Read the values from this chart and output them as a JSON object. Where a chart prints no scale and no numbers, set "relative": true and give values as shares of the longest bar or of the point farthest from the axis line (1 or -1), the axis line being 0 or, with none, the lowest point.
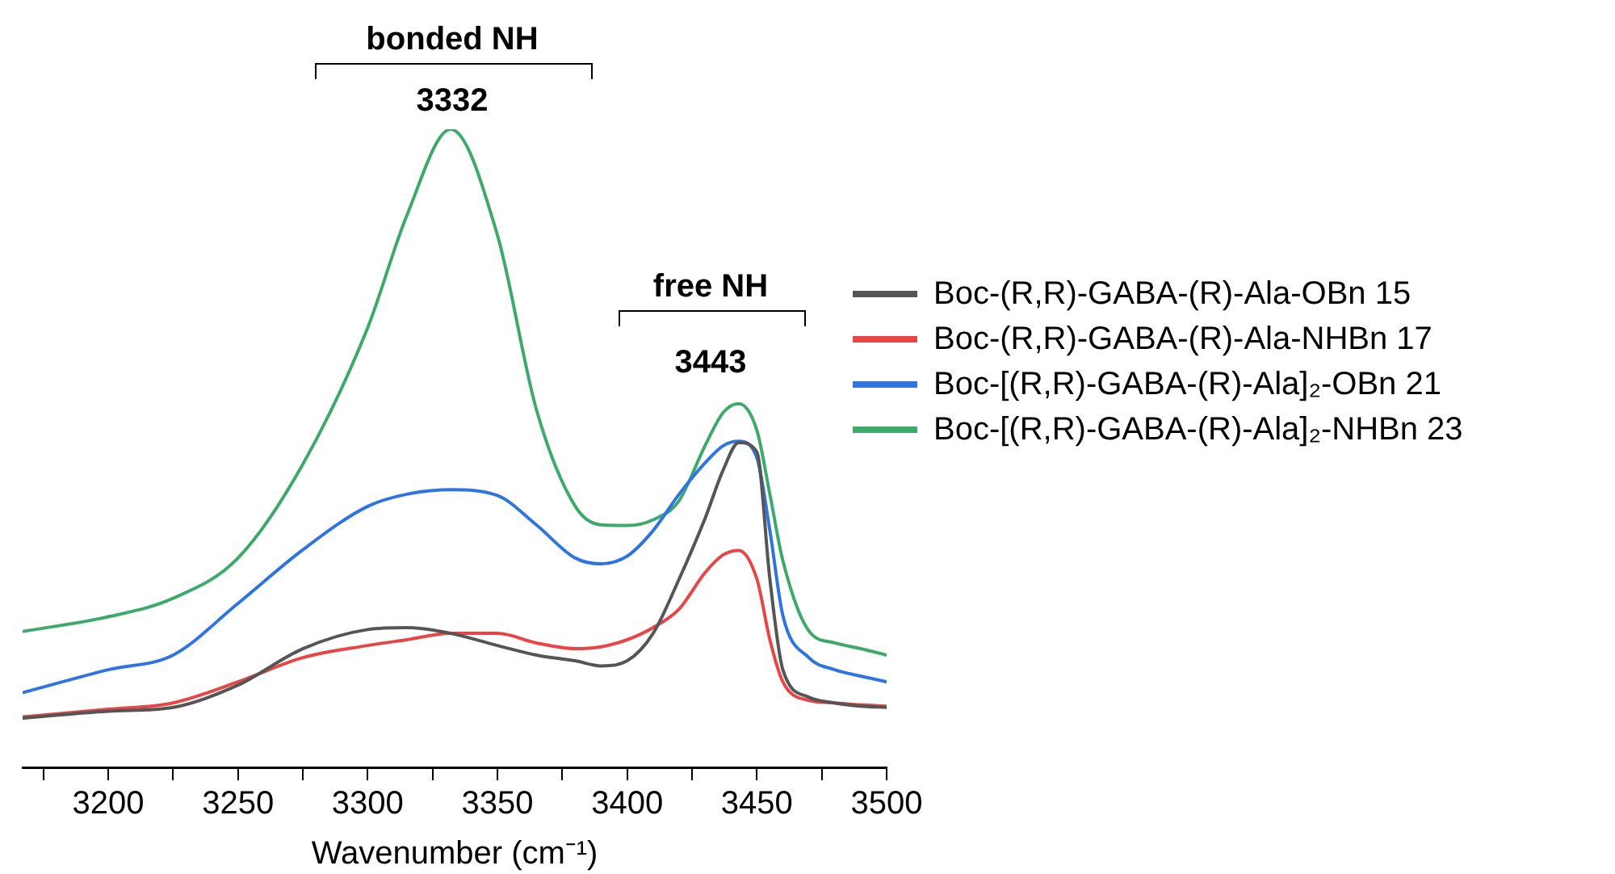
{
  "chart_data": {
    "type": "line",
    "relative": true,
    "xlabel": "Wavenumber (cm⁻¹)",
    "x": [
      3167,
      3200,
      3225,
      3250,
      3275,
      3300,
      3315,
      3332,
      3350,
      3365,
      3380,
      3390,
      3400,
      3410,
      3420,
      3430,
      3437,
      3443,
      3450,
      3455,
      3460,
      3470,
      3480,
      3490,
      3500
    ],
    "xlim": [
      3167,
      3500
    ],
    "xticks": [
      {
        "value": 3175,
        "label": null
      },
      3200,
      {
        "value": 3225,
        "label": null
      },
      3250,
      {
        "value": 3275,
        "label": null
      },
      3300,
      {
        "value": 3325,
        "label": null
      },
      3350,
      {
        "value": 3375,
        "label": null
      },
      3400,
      {
        "value": 3425,
        "label": null
      },
      3450,
      {
        "value": 3475,
        "label": null
      },
      3500
    ],
    "grid": false,
    "marker": "none",
    "line_style": "solid",
    "legend": "right",
    "series": [
      {
        "name": "Boc-(R,R)-GABA-(R)-Ala-OBn 15",
        "color": "#555555",
        "values": [
          0.077,
          0.088,
          0.094,
          0.129,
          0.186,
          0.216,
          0.219,
          0.21,
          0.191,
          0.176,
          0.167,
          0.159,
          0.167,
          0.21,
          0.295,
          0.39,
          0.466,
          0.509,
          0.494,
          0.295,
          0.153,
          0.11,
          0.101,
          0.096,
          0.094
        ]
      },
      {
        "name": "Boc-(R,R)-GABA-(R)-Ala-NHBn 17",
        "color": "#e84646",
        "values": [
          0.079,
          0.091,
          0.101,
          0.134,
          0.172,
          0.191,
          0.2,
          0.21,
          0.21,
          0.195,
          0.186,
          0.189,
          0.2,
          0.219,
          0.248,
          0.305,
          0.333,
          0.34,
          0.295,
          0.2,
          0.134,
          0.105,
          0.101,
          0.098,
          0.096
        ]
      },
      {
        "name": "Boc-[(R,R)-GABA-(R)-Ala]₂-OBn 21",
        "color": "#2f74e0",
        "values": [
          0.117,
          0.153,
          0.176,
          0.257,
          0.341,
          0.409,
          0.428,
          0.435,
          0.426,
          0.38,
          0.328,
          0.319,
          0.331,
          0.371,
          0.428,
          0.477,
          0.504,
          0.511,
          0.485,
          0.371,
          0.238,
          0.172,
          0.153,
          0.143,
          0.134
        ]
      },
      {
        "name": "Boc-[(R,R)-GABA-(R)-Ala]₂-NHBn 23",
        "color": "#3daa6c",
        "values": [
          0.213,
          0.236,
          0.265,
          0.328,
          0.475,
          0.689,
          0.864,
          1,
          0.834,
          0.561,
          0.409,
          0.38,
          0.379,
          0.388,
          0.418,
          0.504,
          0.556,
          0.57,
          0.528,
          0.428,
          0.324,
          0.214,
          0.195,
          0.186,
          0.176
        ]
      }
    ],
    "annotations": [
      "bonded NH",
      "3332",
      "free NH",
      "3443"
    ]
  }
}
